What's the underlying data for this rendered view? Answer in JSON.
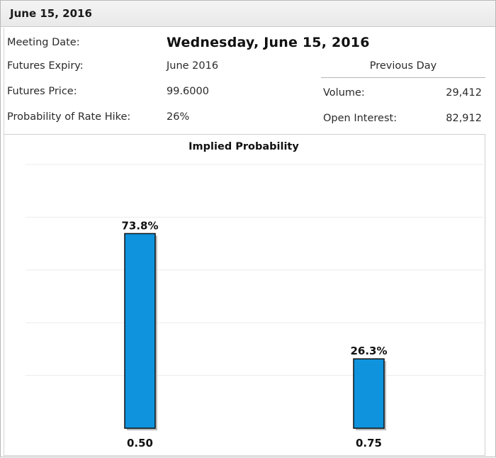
{
  "header": {
    "title": "June 15, 2016"
  },
  "details": {
    "meeting_date_label": "Meeting Date:",
    "meeting_date_value": "Wednesday, June 15, 2016",
    "futures_expiry_label": "Futures Expiry:",
    "futures_expiry_value": "June 2016",
    "futures_price_label": "Futures Price:",
    "futures_price_value": "99.6000",
    "prob_hike_label": "Probability of Rate Hike:",
    "prob_hike_value": "26%"
  },
  "previous_day": {
    "heading": "Previous Day",
    "volume_label": "Volume:",
    "volume_value": "29,412",
    "open_interest_label": "Open Interest:",
    "open_interest_value": "82,912"
  },
  "chart_data": {
    "type": "bar",
    "title": "Implied Probability",
    "categories": [
      "0.50",
      "0.75"
    ],
    "values": [
      73.8,
      26.3
    ],
    "value_labels": [
      "73.8%",
      "26.3%"
    ],
    "ylim": [
      0,
      100
    ],
    "grid": true,
    "bar_color": "#0f93dd"
  }
}
